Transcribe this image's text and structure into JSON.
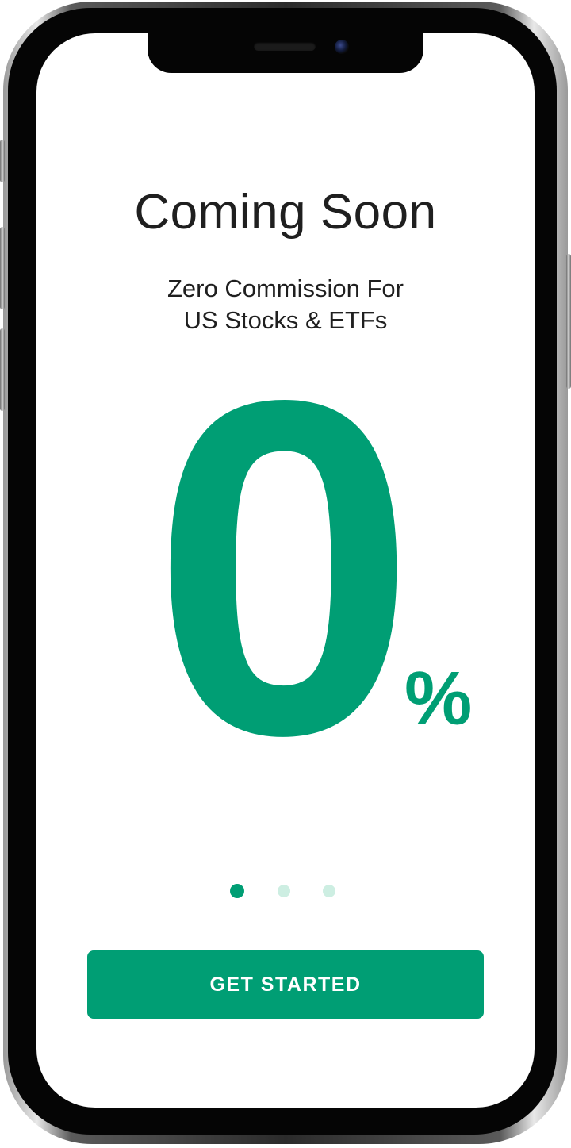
{
  "screen": {
    "title": "Coming Soon",
    "subtitle_line1": "Zero Commission For",
    "subtitle_line2": "US Stocks & ETFs",
    "big_number": "0",
    "unit": "%"
  },
  "pagination": {
    "total_pages": 3,
    "current_page": 1
  },
  "cta": {
    "label": "GET STARTED"
  },
  "colors": {
    "accent": "#009e74",
    "dot_inactive": "#cdeee2",
    "text": "#1f1f1f",
    "background": "#ffffff"
  }
}
